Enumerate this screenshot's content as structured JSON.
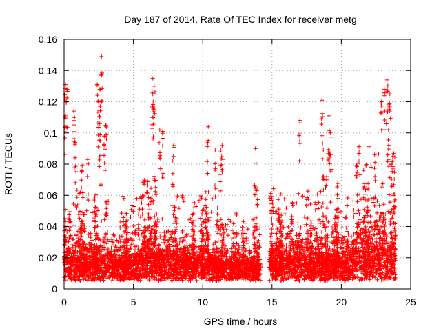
{
  "chart_data": {
    "type": "scatter",
    "title": "Day 187 of 2014, Rate Of TEC Index for receiver metg",
    "xlabel": "GPS time / hours",
    "ylabel": "ROTI / TECUs",
    "xlim": [
      0,
      25
    ],
    "ylim": [
      0,
      0.16
    ],
    "x_ticks": [
      0,
      5,
      10,
      15,
      20,
      25
    ],
    "x_tick_labels": [
      "0",
      "5",
      "10",
      "15",
      "20",
      "25"
    ],
    "y_ticks": [
      0,
      0.02,
      0.04,
      0.06,
      0.08,
      0.1,
      0.12,
      0.14,
      0.16
    ],
    "y_tick_labels": [
      "0",
      "0.02",
      "0.04",
      "0.06",
      "0.08",
      "0.1",
      "0.12",
      "0.14",
      "0.16"
    ],
    "grid": true,
    "marker": "+",
    "marker_color": "#ff0000",
    "data_coverage_hours": [
      0,
      23.9
    ],
    "data_gap_hours": [
      14.2,
      14.8
    ],
    "series": [
      {
        "name": "ROTI",
        "notable_points": [
          {
            "x": 0.1,
            "y": 0.131
          },
          {
            "x": 0.2,
            "y": 0.128
          },
          {
            "x": 0.1,
            "y": 0.111
          },
          {
            "x": 0.7,
            "y": 0.114
          },
          {
            "x": 0.8,
            "y": 0.094
          },
          {
            "x": 1.3,
            "y": 0.079
          },
          {
            "x": 1.7,
            "y": 0.083
          },
          {
            "x": 2.4,
            "y": 0.131
          },
          {
            "x": 2.6,
            "y": 0.128
          },
          {
            "x": 2.7,
            "y": 0.149
          },
          {
            "x": 2.5,
            "y": 0.12
          },
          {
            "x": 2.6,
            "y": 0.095
          },
          {
            "x": 2.9,
            "y": 0.098
          },
          {
            "x": 3.0,
            "y": 0.105
          },
          {
            "x": 6.4,
            "y": 0.135
          },
          {
            "x": 6.5,
            "y": 0.13
          },
          {
            "x": 6.4,
            "y": 0.125
          },
          {
            "x": 6.9,
            "y": 0.102
          },
          {
            "x": 7.1,
            "y": 0.101
          },
          {
            "x": 7.9,
            "y": 0.092
          },
          {
            "x": 10.4,
            "y": 0.104
          },
          {
            "x": 10.9,
            "y": 0.089
          },
          {
            "x": 11.3,
            "y": 0.089
          },
          {
            "x": 11.4,
            "y": 0.092
          },
          {
            "x": 13.8,
            "y": 0.09
          },
          {
            "x": 13.9,
            "y": 0.063
          },
          {
            "x": 17.0,
            "y": 0.108
          },
          {
            "x": 18.6,
            "y": 0.121
          },
          {
            "x": 18.7,
            "y": 0.089
          },
          {
            "x": 19.1,
            "y": 0.111
          },
          {
            "x": 19.2,
            "y": 0.1
          },
          {
            "x": 21.1,
            "y": 0.079
          },
          {
            "x": 22.4,
            "y": 0.086
          },
          {
            "x": 22.9,
            "y": 0.12
          },
          {
            "x": 23.1,
            "y": 0.128
          },
          {
            "x": 23.3,
            "y": 0.134
          },
          {
            "x": 23.5,
            "y": 0.125
          },
          {
            "x": 23.4,
            "y": 0.102
          },
          {
            "x": 23.7,
            "y": 0.085
          }
        ],
        "bands": [
          {
            "x0": 0.0,
            "x1": 2.0,
            "base": 0.016,
            "spread": 0.018
          },
          {
            "x0": 2.0,
            "x1": 5.0,
            "base": 0.014,
            "spread": 0.016
          },
          {
            "x0": 5.0,
            "x1": 8.0,
            "base": 0.017,
            "spread": 0.02
          },
          {
            "x0": 8.0,
            "x1": 11.0,
            "base": 0.015,
            "spread": 0.017
          },
          {
            "x0": 11.0,
            "x1": 14.2,
            "base": 0.012,
            "spread": 0.014
          },
          {
            "x0": 14.8,
            "x1": 18.0,
            "base": 0.015,
            "spread": 0.018
          },
          {
            "x0": 18.0,
            "x1": 21.0,
            "base": 0.016,
            "spread": 0.019
          },
          {
            "x0": 21.0,
            "x1": 23.9,
            "base": 0.02,
            "spread": 0.03
          }
        ]
      }
    ]
  }
}
